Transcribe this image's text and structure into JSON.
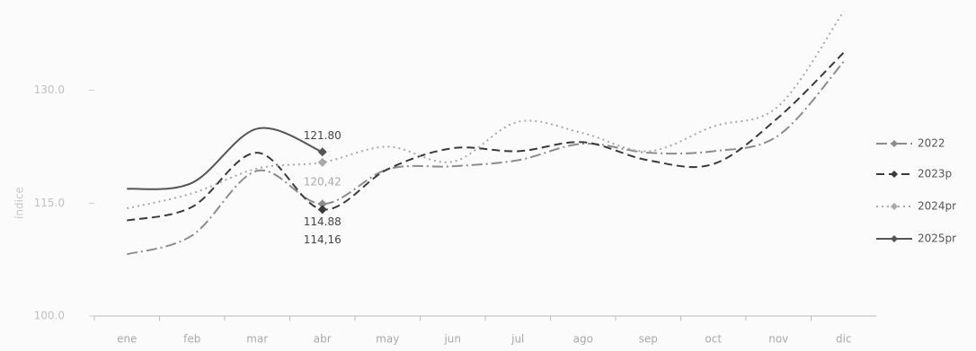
{
  "chart_data": {
    "type": "line",
    "y_label": "índice",
    "categories": [
      "ene",
      "feb",
      "mar",
      "abr",
      "may",
      "jun",
      "jul",
      "ago",
      "sep",
      "oct",
      "nov",
      "dic"
    ],
    "series": [
      {
        "name": "2022",
        "color": "#8c8c8c",
        "dash": "dashdot",
        "values": [
          108.2,
          110.7,
          119.3,
          114.88,
          119.5,
          119.9,
          120.7,
          122.9,
          121.7,
          121.9,
          124.0,
          133.8
        ],
        "value_labels": [
          null,
          null,
          null,
          "114.88",
          null,
          null,
          null,
          null,
          null,
          null,
          null,
          null
        ]
      },
      {
        "name": "2023p",
        "color": "#3a3a3a",
        "dash": "dashed",
        "values": [
          112.7,
          114.5,
          121.7,
          114.16,
          119.5,
          122.3,
          121.9,
          123.1,
          120.7,
          120.2,
          126.4,
          135.0
        ],
        "value_labels": [
          null,
          null,
          null,
          "114,16",
          null,
          null,
          null,
          null,
          null,
          null,
          null,
          null
        ]
      },
      {
        "name": "2024pr",
        "color": "#a8a8a8",
        "dash": "dotted",
        "values": [
          114.3,
          116.3,
          119.6,
          120.42,
          122.5,
          120.5,
          125.8,
          124.3,
          121.9,
          125.2,
          127.9,
          140.5
        ],
        "value_labels": [
          null,
          null,
          null,
          "120,42",
          null,
          null,
          null,
          null,
          null,
          null,
          null,
          null
        ]
      },
      {
        "name": "2025pr",
        "color": "#555555",
        "dash": "solid",
        "values": [
          116.9,
          117.7,
          124.9,
          121.8,
          null,
          null,
          null,
          null,
          null,
          null,
          null,
          null
        ],
        "value_labels": [
          null,
          null,
          null,
          "121.80",
          null,
          null,
          null,
          null,
          null,
          null,
          null,
          null
        ]
      }
    ],
    "ylim": [
      100,
      142
    ],
    "yticks": [
      {
        "value": 100,
        "label": "100.0"
      },
      {
        "value": 115,
        "label": "115.0"
      },
      {
        "value": 130,
        "label": "130.0"
      }
    ],
    "grid": false,
    "legend": "right"
  }
}
